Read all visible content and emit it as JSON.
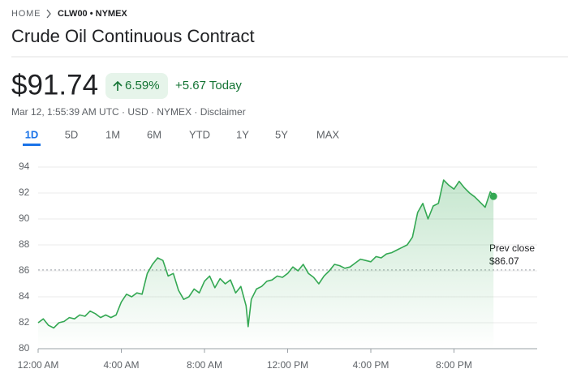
{
  "breadcrumb": {
    "home": "HOME",
    "symbol": "CLW00 • NYMEX"
  },
  "title": "Crude Oil Continuous Contract",
  "quote": {
    "price": "$91.74",
    "change_percent": "6.59%",
    "change_today": "+5.67 Today",
    "meta": "Mar 12, 1:55:39 AM UTC · USD · NYMEX · Disclaimer"
  },
  "tabs": [
    "1D",
    "5D",
    "1M",
    "6M",
    "YTD",
    "1Y",
    "5Y",
    "MAX"
  ],
  "chart_data": {
    "type": "line",
    "color": "#34a853",
    "grid": true,
    "x": [
      0,
      0.25,
      0.5,
      0.75,
      1,
      1.25,
      1.5,
      1.75,
      2,
      2.25,
      2.5,
      2.75,
      3,
      3.25,
      3.5,
      3.75,
      4,
      4.25,
      4.5,
      4.75,
      5,
      5.25,
      5.5,
      5.75,
      6,
      6.25,
      6.5,
      6.75,
      7,
      7.25,
      7.5,
      7.75,
      8,
      8.25,
      8.5,
      8.75,
      9,
      9.25,
      9.5,
      9.75,
      10,
      10.1,
      10.25,
      10.5,
      10.75,
      11,
      11.25,
      11.5,
      11.75,
      12,
      12.25,
      12.5,
      12.75,
      13,
      13.25,
      13.5,
      13.75,
      14,
      14.25,
      14.5,
      14.75,
      15,
      15.25,
      15.5,
      15.75,
      16,
      16.25,
      16.5,
      16.75,
      17,
      17.25,
      17.5,
      17.75,
      18,
      18.25,
      18.5,
      18.75,
      19,
      19.25,
      19.5,
      19.75,
      20,
      20.25,
      20.5,
      20.75,
      21,
      21.25,
      21.5,
      21.75,
      21.9
    ],
    "values": [
      82.0,
      82.3,
      81.8,
      81.6,
      82.0,
      82.1,
      82.4,
      82.3,
      82.6,
      82.5,
      82.9,
      82.7,
      82.4,
      82.6,
      82.4,
      82.6,
      83.6,
      84.2,
      84.0,
      84.3,
      84.2,
      85.8,
      86.5,
      87.0,
      86.8,
      85.6,
      85.8,
      84.5,
      83.8,
      84.0,
      84.6,
      84.3,
      85.2,
      85.6,
      84.7,
      85.4,
      85.0,
      85.3,
      84.3,
      84.8,
      83.3,
      81.7,
      83.8,
      84.6,
      84.8,
      85.2,
      85.3,
      85.6,
      85.5,
      85.8,
      86.3,
      86.0,
      86.5,
      85.8,
      85.5,
      85.0,
      85.6,
      86.0,
      86.5,
      86.4,
      86.2,
      86.3,
      86.6,
      86.9,
      86.8,
      86.7,
      87.1,
      87.0,
      87.3,
      87.4,
      87.6,
      87.8,
      88.0,
      88.6,
      90.5,
      91.2,
      90.0,
      91.0,
      91.2,
      93.0,
      92.6,
      92.3,
      92.9,
      92.4,
      92.0,
      91.7,
      91.3,
      90.9,
      92.1,
      91.74
    ],
    "xlim": [
      0,
      24
    ],
    "xticks": [
      {
        "value": 0,
        "label": "12:00 AM"
      },
      {
        "value": 4,
        "label": "4:00 AM"
      },
      {
        "value": 8,
        "label": "8:00 AM"
      },
      {
        "value": 12,
        "label": "12:00 PM"
      },
      {
        "value": 16,
        "label": "4:00 PM"
      },
      {
        "value": 20,
        "label": "8:00 PM"
      }
    ],
    "ylim": [
      80,
      94
    ],
    "yticks": [
      80,
      82,
      84,
      86,
      88,
      90,
      92,
      94
    ],
    "reference_line": {
      "name": "Prev close",
      "value": 86.07,
      "value_label": "$86.07"
    }
  }
}
